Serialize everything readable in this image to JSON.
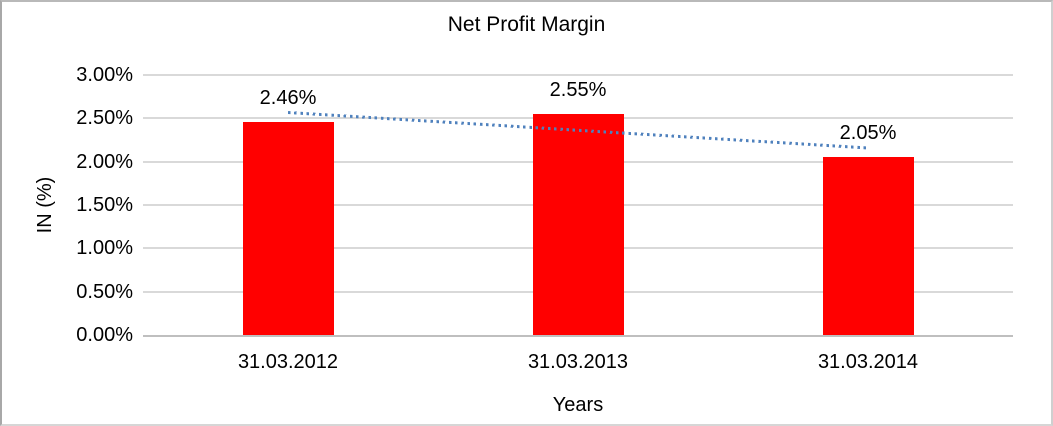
{
  "chart_data": {
    "type": "bar",
    "title": "Net Profit Margin",
    "xlabel": "Years",
    "ylabel": "IN (%)",
    "categories": [
      "31.03.2012",
      "31.03.2013",
      "31.03.2014"
    ],
    "values": [
      2.46,
      2.55,
      2.05
    ],
    "value_labels": [
      "2.46%",
      "2.55%",
      "2.05%"
    ],
    "ylim": [
      0,
      3
    ],
    "ytick_step": 0.5,
    "ytick_labels": [
      "0.00%",
      "0.50%",
      "1.00%",
      "1.50%",
      "2.00%",
      "2.50%",
      "3.00%"
    ],
    "grid": true,
    "legend_position": "none",
    "bar_color": "#FF0000",
    "trendline": {
      "type": "linear",
      "style": "dotted",
      "color": "#4F81BD",
      "start_value": 2.57,
      "end_value": 2.16
    },
    "gridline_color": "#D9D9D9",
    "axis_line_color": "#BFBFBF",
    "text_color": "#000000"
  }
}
